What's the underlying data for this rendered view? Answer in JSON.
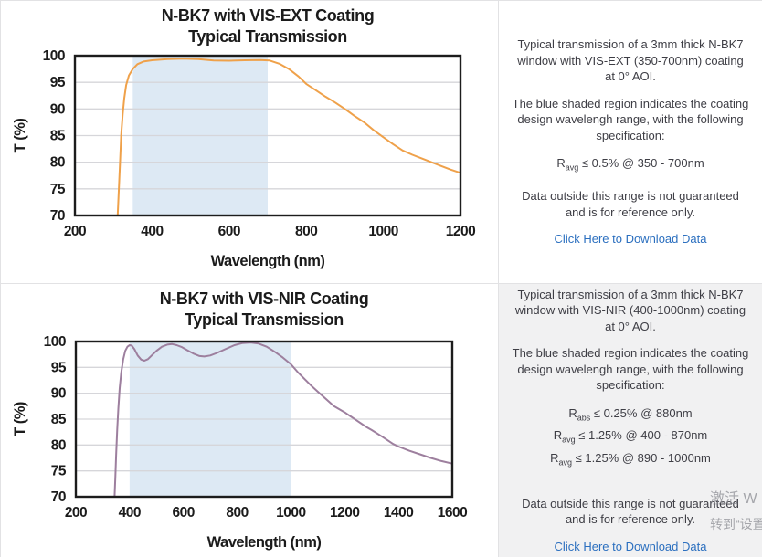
{
  "colors": {
    "orange_curve": "#efa14a",
    "purple_curve": "#9d7f9e",
    "shaded_region": "#dde9f4",
    "gridline": "#d6d6da",
    "plot_border": "#1c1c1c",
    "link_blue": "#2b6fbf",
    "panel_gray": "#f1f1f2",
    "divider": "#e2e2e4",
    "body_text": "#3e3e45"
  },
  "chart_data": [
    {
      "type": "line",
      "title": "N-BK7 with VIS-EXT Coating",
      "subtitle": "Typical Transmission",
      "xlabel": "Wavelength (nm)",
      "ylabel": "T (%)",
      "xlim": [
        200,
        1200
      ],
      "ylim": [
        70,
        100
      ],
      "xticks": [
        200,
        400,
        600,
        800,
        1000,
        1200
      ],
      "yticks": [
        70,
        75,
        80,
        85,
        90,
        95,
        100
      ],
      "grid": "horizontal-only",
      "shaded_region_nm": [
        350,
        700
      ],
      "legend": "none",
      "series": [
        {
          "name": "N-BK7 VIS-EXT transmission",
          "points": [
            [
              311,
              70
            ],
            [
              314,
              75
            ],
            [
              317,
              80
            ],
            [
              320,
              85
            ],
            [
              324,
              89
            ],
            [
              328,
              92
            ],
            [
              333,
              94.5
            ],
            [
              340,
              96.3
            ],
            [
              350,
              97.5
            ],
            [
              362,
              98.4
            ],
            [
              378,
              98.9
            ],
            [
              400,
              99.15
            ],
            [
              440,
              99.35
            ],
            [
              480,
              99.45
            ],
            [
              520,
              99.35
            ],
            [
              560,
              99.1
            ],
            [
              600,
              99.05
            ],
            [
              640,
              99.15
            ],
            [
              680,
              99.2
            ],
            [
              705,
              99.1
            ],
            [
              730,
              98.5
            ],
            [
              755,
              97.5
            ],
            [
              780,
              96.1
            ],
            [
              800,
              94.7
            ],
            [
              825,
              93.5
            ],
            [
              850,
              92.3
            ],
            [
              875,
              91.2
            ],
            [
              900,
              90.0
            ],
            [
              925,
              88.7
            ],
            [
              950,
              87.5
            ],
            [
              975,
              86.0
            ],
            [
              1000,
              84.7
            ],
            [
              1025,
              83.4
            ],
            [
              1050,
              82.2
            ],
            [
              1075,
              81.4
            ],
            [
              1100,
              80.7
            ],
            [
              1125,
              80.0
            ],
            [
              1150,
              79.3
            ],
            [
              1175,
              78.6
            ],
            [
              1200,
              78.0
            ]
          ]
        }
      ]
    },
    {
      "type": "line",
      "title": "N-BK7 with VIS-NIR Coating",
      "subtitle": "Typical Transmission",
      "xlabel": "Wavelength (nm)",
      "ylabel": "T (%)",
      "xlim": [
        200,
        1600
      ],
      "ylim": [
        70,
        100
      ],
      "xticks": [
        200,
        400,
        600,
        800,
        1000,
        1200,
        1400,
        1600
      ],
      "yticks": [
        70,
        75,
        80,
        85,
        90,
        95,
        100
      ],
      "grid": "horizontal-only",
      "shaded_region_nm": [
        400,
        1000
      ],
      "legend": "none",
      "series": [
        {
          "name": "N-BK7 VIS-NIR transmission",
          "points": [
            [
              344,
              70
            ],
            [
              347,
              74
            ],
            [
              350,
              78
            ],
            [
              354,
              83
            ],
            [
              358,
              87
            ],
            [
              363,
              91
            ],
            [
              369,
              94
            ],
            [
              376,
              96.5
            ],
            [
              384,
              98.2
            ],
            [
              392,
              99.0
            ],
            [
              400,
              99.3
            ],
            [
              408,
              99.2
            ],
            [
              418,
              98.5
            ],
            [
              430,
              97.3
            ],
            [
              443,
              96.5
            ],
            [
              455,
              96.3
            ],
            [
              468,
              96.6
            ],
            [
              482,
              97.3
            ],
            [
              500,
              98.2
            ],
            [
              520,
              99.0
            ],
            [
              540,
              99.4
            ],
            [
              558,
              99.5
            ],
            [
              575,
              99.3
            ],
            [
              595,
              98.9
            ],
            [
              615,
              98.3
            ],
            [
              640,
              97.6
            ],
            [
              660,
              97.2
            ],
            [
              678,
              97.1
            ],
            [
              700,
              97.3
            ],
            [
              725,
              97.8
            ],
            [
              755,
              98.5
            ],
            [
              790,
              99.3
            ],
            [
              820,
              99.7
            ],
            [
              850,
              99.8
            ],
            [
              880,
              99.6
            ],
            [
              910,
              99.0
            ],
            [
              940,
              98.0
            ],
            [
              970,
              96.9
            ],
            [
              1000,
              95.6
            ],
            [
              1025,
              94.1
            ],
            [
              1050,
              92.8
            ],
            [
              1075,
              91.5
            ],
            [
              1100,
              90.3
            ],
            [
              1130,
              88.9
            ],
            [
              1160,
              87.5
            ],
            [
              1200,
              86.3
            ],
            [
              1240,
              84.9
            ],
            [
              1280,
              83.5
            ],
            [
              1300,
              82.9
            ],
            [
              1340,
              81.6
            ],
            [
              1380,
              80.2
            ],
            [
              1400,
              79.7
            ],
            [
              1440,
              78.9
            ],
            [
              1480,
              78.2
            ],
            [
              1520,
              77.5
            ],
            [
              1560,
              76.9
            ],
            [
              1600,
              76.4
            ]
          ]
        }
      ]
    }
  ],
  "panels": [
    {
      "para1": "Typical transmission of a 3mm thick N-BK7 window with VIS-EXT (350-700nm) coating at 0° AOI.",
      "para2": "The blue shaded region indicates the coating design wavelengh range, with the following specification:",
      "specs": [
        {
          "pre": "R",
          "sub": "avg",
          "text": " ≤ 0.5% @ 350 - 700nm"
        }
      ],
      "para3": "Data outside this range is not guaranteed and is for reference only.",
      "link": "Click Here to Download Data"
    },
    {
      "para1": "Typical transmission of a 3mm thick N-BK7 window with VIS-NIR (400-1000nm) coating at 0° AOI.",
      "para2": "The blue shaded region indicates the coating design wavelengh range, with the following specification:",
      "specs": [
        {
          "pre": "R",
          "sub": "abs",
          "text": " ≤ 0.25% @ 880nm"
        },
        {
          "pre": "R",
          "sub": "avg",
          "text": " ≤ 1.25% @ 400 - 870nm"
        },
        {
          "pre": "R",
          "sub": "avg",
          "text": " ≤ 1.25% @ 890 - 1000nm"
        }
      ],
      "para3": "Data outside this range is not guaranteed and is for reference only.",
      "link": "Click Here to Download Data"
    }
  ],
  "watermark": {
    "line1": "激活 W",
    "line2": "转到“设置"
  }
}
